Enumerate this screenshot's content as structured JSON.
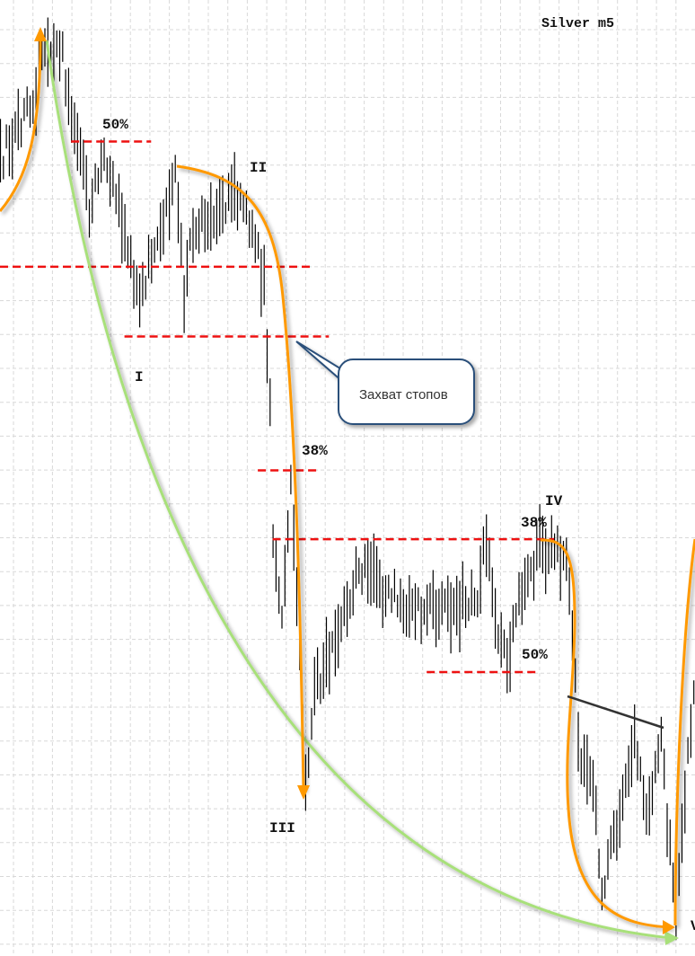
{
  "chart_data": {
    "type": "bar",
    "subtype": "ohlc-price-bars",
    "title": "Silver m5",
    "grid": true,
    "axes_shown": false,
    "price_scale_note": "unlabeled",
    "price_path": [
      [
        0,
        83.1
      ],
      [
        12,
        90.6
      ],
      [
        15,
        96.2
      ],
      [
        21,
        94.4
      ],
      [
        24,
        87.8
      ],
      [
        30,
        78.4
      ],
      [
        35,
        83.1
      ],
      [
        39,
        80.3
      ],
      [
        47,
        68.0
      ],
      [
        53,
        75.6
      ],
      [
        59,
        81.2
      ],
      [
        62,
        69.0
      ],
      [
        65,
        76.5
      ],
      [
        79,
        79.3
      ],
      [
        86,
        75.6
      ],
      [
        89,
        69.9
      ],
      [
        91,
        57.7
      ],
      [
        92,
        43.6
      ],
      [
        95,
        36.1
      ],
      [
        98,
        50.2
      ],
      [
        102,
        24.8
      ],
      [
        103,
        18.2
      ],
      [
        106,
        27.6
      ],
      [
        115,
        34.2
      ],
      [
        121,
        40.8
      ],
      [
        130,
        38.0
      ],
      [
        139,
        36.1
      ],
      [
        152,
        36.1
      ],
      [
        161,
        38.0
      ],
      [
        164,
        43.6
      ],
      [
        168,
        34.2
      ],
      [
        171,
        30.5
      ],
      [
        174,
        36.1
      ],
      [
        182,
        42.7
      ],
      [
        191,
        41.7
      ],
      [
        194,
        28.6
      ],
      [
        195,
        21.1
      ],
      [
        200,
        17.3
      ],
      [
        203,
        7.0
      ],
      [
        209,
        15.4
      ],
      [
        214,
        23.9
      ],
      [
        218,
        15.4
      ],
      [
        223,
        22.0
      ],
      [
        226,
        10.7
      ],
      [
        228,
        3.2
      ],
      [
        232,
        20.1
      ],
      [
        235,
        29.5
      ]
    ],
    "levels": [
      {
        "label": "50%",
        "price": 85.2,
        "from_bar": 24,
        "to_bar": 51
      },
      {
        "label": "",
        "price": 72.1,
        "from_bar": 0,
        "to_bar": 106
      },
      {
        "label": "",
        "price": 64.8,
        "from_bar": 42,
        "to_bar": 111
      },
      {
        "label": "38%",
        "price": 50.8,
        "from_bar": 87,
        "to_bar": 107
      },
      {
        "label": "38%",
        "price": 43.6,
        "from_bar": 92,
        "to_bar": 187
      },
      {
        "label": "50%",
        "price": 29.7,
        "from_bar": 144,
        "to_bar": 181
      }
    ],
    "wave_labels": [
      "I",
      "II",
      "III",
      "IV",
      "V"
    ],
    "callout": "Захват стопов",
    "colors": {
      "bars": "#000000",
      "levels": "#ee1111",
      "wave_curve": "#ff9900",
      "trend_arc": "#a8e07a",
      "trendline": "#333333",
      "callout_border": "#2a4f7a",
      "grid": "#d8d8d8"
    }
  }
}
